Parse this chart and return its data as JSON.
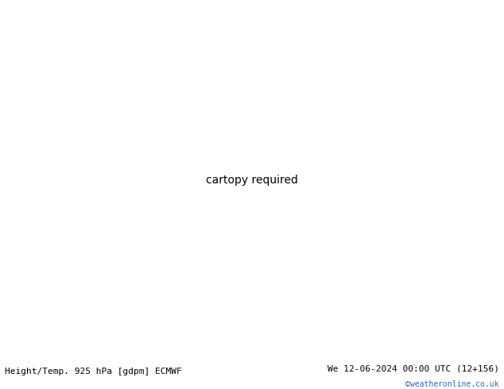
{
  "title_left": "Height/Temp. 925 hPa [gdpm] ECMWF",
  "title_right": "We 12-06-2024 00:00 UTC (12+156)",
  "copyright": "©weatheronline.co.uk",
  "ocean_color": "#d8e8f0",
  "land_color": "#c8f0b0",
  "land_edge_color": "#a0a0a0",
  "fig_width": 6.34,
  "fig_height": 4.9,
  "dpi": 100,
  "lon_min": 90,
  "lon_max": 180,
  "lat_min": -55,
  "lat_max": 10
}
